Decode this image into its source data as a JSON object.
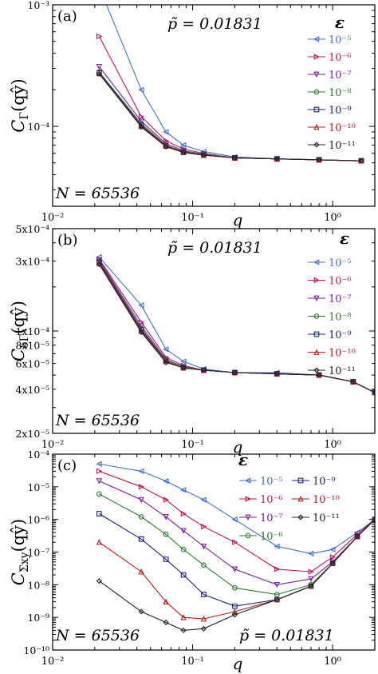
{
  "chart_data": [
    {
      "type": "line",
      "panel_label": "(a)",
      "ylabel": "C_Γ(qŷ)",
      "ylabel_main": "C",
      "ylabel_sub": "Γ",
      "ylabel_arg": "(qŷ)",
      "xlabel": "q",
      "x_scale": "log",
      "y_scale": "log",
      "xlim": [
        0.01,
        2.0
      ],
      "ylim": [
        2.2e-05,
        0.001
      ],
      "x_ticks": [
        {
          "value": 0.01,
          "label": "10⁻²"
        },
        {
          "value": 0.1,
          "label": "10⁻¹"
        },
        {
          "value": 1,
          "label": "10⁰"
        }
      ],
      "y_ticks": [
        {
          "value": 0.0001,
          "label": "10⁻⁴"
        },
        {
          "value": 0.001,
          "label": "10⁻³"
        }
      ],
      "annotation_p": "p̃ = 0.01831",
      "annotation_n": "N = 65536",
      "legend_title": "ε",
      "legend_position": "top-right",
      "series": [
        {
          "name": "10⁻⁵",
          "color": "#4472c4",
          "marker": "triangle-left",
          "x": [
            0.0215,
            0.043,
            0.0645,
            0.086,
            0.12,
            0.2,
            0.4,
            0.8,
            1.6
          ],
          "y": [
            0.0014,
            0.0002,
            9e-05,
            7e-05,
            6.2e-05,
            5.6e-05,
            5.4e-05,
            5.3e-05,
            5.2e-05
          ]
        },
        {
          "name": "10⁻⁶",
          "color": "#c2185b",
          "marker": "triangle-right",
          "x": [
            0.0215,
            0.043,
            0.0645,
            0.086,
            0.12,
            0.2,
            0.4,
            0.8,
            1.6
          ],
          "y": [
            0.00055,
            0.00012,
            7.6e-05,
            6.5e-05,
            6e-05,
            5.5e-05,
            5.4e-05,
            5.3e-05,
            5.2e-05
          ]
        },
        {
          "name": "10⁻⁷",
          "color": "#7b1fa2",
          "marker": "triangle-down",
          "x": [
            0.0215,
            0.043,
            0.0645,
            0.086,
            0.12,
            0.2,
            0.4,
            0.8,
            1.6
          ],
          "y": [
            0.00031,
            0.00011,
            7.2e-05,
            6.3e-05,
            5.9e-05,
            5.5e-05,
            5.4e-05,
            5.3e-05,
            5.2e-05
          ]
        },
        {
          "name": "10⁻⁸",
          "color": "#2e7d32",
          "marker": "circle",
          "x": [
            0.0215,
            0.043,
            0.0645,
            0.086,
            0.12,
            0.2,
            0.4,
            0.8,
            1.6
          ],
          "y": [
            0.00028,
            0.000105,
            7e-05,
            6.2e-05,
            5.9e-05,
            5.5e-05,
            5.4e-05,
            5.3e-05,
            5.2e-05
          ]
        },
        {
          "name": "10⁻⁹",
          "color": "#1a237e",
          "marker": "square",
          "x": [
            0.0215,
            0.043,
            0.0645,
            0.086,
            0.12,
            0.2,
            0.4,
            0.8,
            1.6
          ],
          "y": [
            0.000275,
            0.000102,
            6.9e-05,
            6.1e-05,
            5.8e-05,
            5.5e-05,
            5.4e-05,
            5.3e-05,
            5.2e-05
          ]
        },
        {
          "name": "10⁻¹⁰",
          "color": "#b71c1c",
          "marker": "triangle-up",
          "x": [
            0.0215,
            0.043,
            0.0645,
            0.086,
            0.12,
            0.2,
            0.4,
            0.8,
            1.6
          ],
          "y": [
            0.000272,
            0.0001,
            6.9e-05,
            6.1e-05,
            5.8e-05,
            5.5e-05,
            5.4e-05,
            5.3e-05,
            5.2e-05
          ]
        },
        {
          "name": "10⁻¹¹",
          "color": "#222222",
          "marker": "diamond",
          "x": [
            0.0215,
            0.043,
            0.0645,
            0.086,
            0.12,
            0.2,
            0.4,
            0.8,
            1.6
          ],
          "y": [
            0.00027,
            9.9e-05,
            6.8e-05,
            6.1e-05,
            5.8e-05,
            5.5e-05,
            5.4e-05,
            5.3e-05,
            5.2e-05
          ]
        }
      ]
    },
    {
      "type": "line",
      "panel_label": "(b)",
      "ylabel": "C_δΓ(qŷ)",
      "ylabel_main": "C",
      "ylabel_sub": "δΓ",
      "ylabel_arg": "(qŷ)",
      "xlabel": "q",
      "x_scale": "log",
      "y_scale": "log",
      "xlim": [
        0.01,
        2.0
      ],
      "ylim": [
        2e-05,
        0.0005
      ],
      "x_ticks": [
        {
          "value": 0.01,
          "label": "10⁻²"
        },
        {
          "value": 0.1,
          "label": "10⁻¹"
        },
        {
          "value": 1,
          "label": "10⁰"
        }
      ],
      "y_ticks": [
        {
          "value": 2e-05,
          "label": "2x10⁻⁵"
        },
        {
          "value": 4e-05,
          "label": "4x10⁻⁵"
        },
        {
          "value": 6e-05,
          "label": "6x10⁻⁵"
        },
        {
          "value": 8e-05,
          "label": "8x10⁻⁵"
        },
        {
          "value": 0.0001,
          "label": "1x10⁻⁴"
        },
        {
          "value": 0.0003,
          "label": "3x10⁻⁴"
        },
        {
          "value": 0.0005,
          "label": "5x10⁻⁴"
        }
      ],
      "annotation_p": "p̃ = 0.01831",
      "annotation_n": "N = 65536",
      "legend_title": "ε",
      "legend_position": "top-right",
      "series": [
        {
          "name": "10⁻⁵",
          "color": "#4472c4",
          "marker": "triangle-left",
          "x": [
            0.0215,
            0.043,
            0.0645,
            0.086,
            0.12,
            0.2,
            0.4,
            0.8,
            1.4,
            2.0
          ],
          "y": [
            0.00032,
            0.00015,
            7.5e-05,
            6.2e-05,
            5.5e-05,
            5.2e-05,
            5.2e-05,
            5e-05,
            4.5e-05,
            3.8e-05
          ]
        },
        {
          "name": "10⁻⁶",
          "color": "#c2185b",
          "marker": "triangle-right",
          "x": [
            0.0215,
            0.043,
            0.0645,
            0.086,
            0.12,
            0.2,
            0.4,
            0.8,
            1.4,
            2.0
          ],
          "y": [
            0.00031,
            0.000115,
            6.6e-05,
            5.8e-05,
            5.4e-05,
            5.2e-05,
            5.1e-05,
            5e-05,
            4.5e-05,
            3.8e-05
          ]
        },
        {
          "name": "10⁻⁷",
          "color": "#7b1fa2",
          "marker": "triangle-down",
          "x": [
            0.0215,
            0.043,
            0.0645,
            0.086,
            0.12,
            0.2,
            0.4,
            0.8,
            1.4,
            2.0
          ],
          "y": [
            0.000305,
            0.000108,
            6.4e-05,
            5.7e-05,
            5.4e-05,
            5.2e-05,
            5.1e-05,
            5e-05,
            4.5e-05,
            3.8e-05
          ]
        },
        {
          "name": "10⁻⁸",
          "color": "#2e7d32",
          "marker": "circle",
          "x": [
            0.0215,
            0.043,
            0.0645,
            0.086,
            0.12,
            0.2,
            0.4,
            0.8,
            1.4,
            2.0
          ],
          "y": [
            0.0003,
            0.000104,
            6.3e-05,
            5.7e-05,
            5.4e-05,
            5.2e-05,
            5.1e-05,
            5e-05,
            4.5e-05,
            3.8e-05
          ]
        },
        {
          "name": "10⁻⁹",
          "color": "#1a237e",
          "marker": "square",
          "x": [
            0.0215,
            0.043,
            0.0645,
            0.086,
            0.12,
            0.2,
            0.4,
            0.8,
            1.4,
            2.0
          ],
          "y": [
            0.000295,
            0.000102,
            6.2e-05,
            5.6e-05,
            5.4e-05,
            5.2e-05,
            5.1e-05,
            5e-05,
            4.5e-05,
            3.8e-05
          ]
        },
        {
          "name": "10⁻¹⁰",
          "color": "#b71c1c",
          "marker": "triangle-up",
          "x": [
            0.0215,
            0.043,
            0.0645,
            0.086,
            0.12,
            0.2,
            0.4,
            0.8,
            1.4,
            2.0
          ],
          "y": [
            0.00029,
            0.0001,
            6.2e-05,
            5.6e-05,
            5.4e-05,
            5.2e-05,
            5.1e-05,
            5e-05,
            4.5e-05,
            3.8e-05
          ]
        },
        {
          "name": "10⁻¹¹",
          "color": "#222222",
          "marker": "diamond",
          "x": [
            0.0215,
            0.043,
            0.0645,
            0.086,
            0.12,
            0.2,
            0.4,
            0.8,
            1.4,
            2.0
          ],
          "y": [
            0.000285,
            9.8e-05,
            6.1e-05,
            5.6e-05,
            5.4e-05,
            5.2e-05,
            5.1e-05,
            5e-05,
            4.5e-05,
            3.8e-05
          ]
        }
      ]
    },
    {
      "type": "line",
      "panel_label": "(c)",
      "ylabel": "C_Σxy(qŷ)",
      "ylabel_main": "C",
      "ylabel_sub": "Σxy",
      "ylabel_arg": "(qŷ)",
      "xlabel": "q",
      "x_scale": "log",
      "y_scale": "log",
      "xlim": [
        0.01,
        2.0
      ],
      "ylim": [
        1e-10,
        0.0001
      ],
      "x_ticks": [
        {
          "value": 0.01,
          "label": "10⁻²"
        },
        {
          "value": 0.1,
          "label": "10⁻¹"
        },
        {
          "value": 1,
          "label": "10⁰"
        }
      ],
      "y_ticks": [
        {
          "value": 1e-10,
          "label": "10⁻¹⁰"
        },
        {
          "value": 1e-09,
          "label": "10⁻⁹"
        },
        {
          "value": 1e-08,
          "label": "10⁻⁸"
        },
        {
          "value": 1e-07,
          "label": "10⁻⁷"
        },
        {
          "value": 1e-06,
          "label": "10⁻⁶"
        },
        {
          "value": 1e-05,
          "label": "10⁻⁵"
        },
        {
          "value": 0.0001,
          "label": "10⁻⁴"
        }
      ],
      "annotation_p": "p̃ = 0.01831",
      "annotation_n": "N = 65536",
      "legend_title": "ε",
      "legend_position": "top-right",
      "series": [
        {
          "name": "10⁻⁵",
          "color": "#4472c4",
          "marker": "triangle-left",
          "x": [
            0.0215,
            0.043,
            0.0645,
            0.086,
            0.12,
            0.2,
            0.4,
            0.7,
            1.0,
            1.5,
            2.0
          ],
          "y": [
            5e-05,
            3e-05,
            1.5e-05,
            8e-06,
            4e-06,
            1e-06,
            1.5e-07,
            9e-08,
            1.2e-07,
            4e-07,
            1e-06
          ]
        },
        {
          "name": "10⁻⁶",
          "color": "#c2185b",
          "marker": "triangle-right",
          "x": [
            0.0215,
            0.043,
            0.0645,
            0.086,
            0.12,
            0.2,
            0.4,
            0.7,
            1.0,
            1.5,
            2.0
          ],
          "y": [
            3e-05,
            1e-05,
            4e-06,
            1.5e-06,
            6e-07,
            2e-07,
            3e-08,
            2.5e-08,
            7e-08,
            3.5e-07,
            1e-06
          ]
        },
        {
          "name": "10⁻⁷",
          "color": "#7b1fa2",
          "marker": "triangle-down",
          "x": [
            0.0215,
            0.043,
            0.0645,
            0.086,
            0.12,
            0.2,
            0.4,
            0.7,
            1.0,
            1.5,
            2.0
          ],
          "y": [
            1.5e-05,
            4e-06,
            1.2e-06,
            4.5e-07,
            1.5e-07,
            3e-08,
            1e-08,
            1.5e-08,
            5e-08,
            3e-07,
            1e-06
          ]
        },
        {
          "name": "10⁻⁸",
          "color": "#2e7d32",
          "marker": "circle",
          "x": [
            0.0215,
            0.043,
            0.0645,
            0.086,
            0.12,
            0.2,
            0.4,
            0.7,
            1.0,
            1.5,
            2.0
          ],
          "y": [
            6e-06,
            1.2e-06,
            3.5e-07,
            1.2e-07,
            4e-08,
            8e-09,
            5e-09,
            1e-08,
            4.5e-08,
            3e-07,
            1e-06
          ]
        },
        {
          "name": "10⁻⁹",
          "color": "#1a237e",
          "marker": "square",
          "x": [
            0.0215,
            0.043,
            0.0645,
            0.086,
            0.12,
            0.2,
            0.4,
            0.7,
            1.0,
            1.5,
            2.0
          ],
          "y": [
            1.5e-06,
            2.5e-07,
            6e-08,
            2e-08,
            5e-09,
            2.2e-09,
            3.5e-09,
            9e-09,
            4.5e-08,
            3e-07,
            1e-06
          ]
        },
        {
          "name": "10⁻¹⁰",
          "color": "#b71c1c",
          "marker": "triangle-up",
          "x": [
            0.0215,
            0.043,
            0.0645,
            0.086,
            0.12,
            0.2,
            0.4,
            0.7,
            1.0,
            1.5,
            2.0
          ],
          "y": [
            2e-07,
            2.5e-08,
            3e-09,
            1e-09,
            9e-10,
            1.5e-09,
            3.5e-09,
            9e-09,
            4.5e-08,
            3e-07,
            1e-06
          ]
        },
        {
          "name": "10⁻¹¹",
          "color": "#222222",
          "marker": "diamond",
          "x": [
            0.0215,
            0.043,
            0.0645,
            0.086,
            0.12,
            0.2,
            0.4,
            0.7,
            1.0,
            1.5,
            2.0
          ],
          "y": [
            1.3e-08,
            1.5e-09,
            7e-10,
            4e-10,
            4.5e-10,
            1.2e-09,
            3.5e-09,
            9e-09,
            4.5e-08,
            3e-07,
            1e-06
          ]
        }
      ]
    }
  ]
}
